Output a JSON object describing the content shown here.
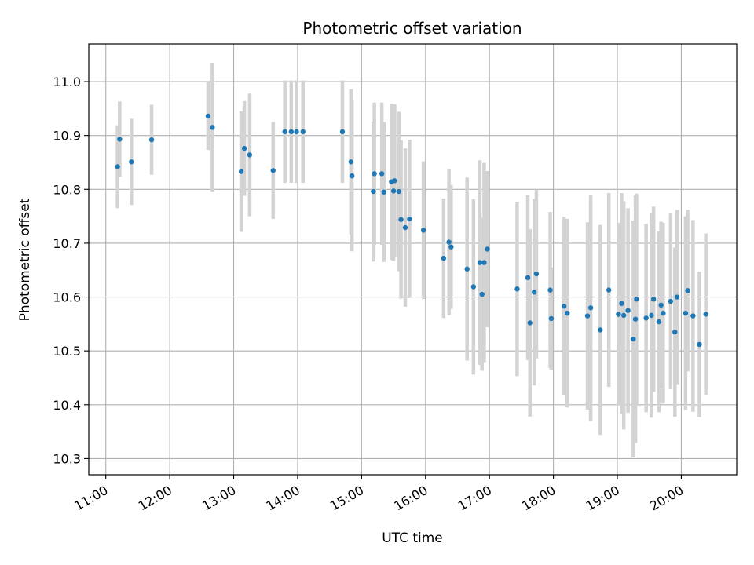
{
  "chart_data": {
    "type": "scatter",
    "title": "Photometric offset variation",
    "xlabel": "UTC time",
    "ylabel": "Photometric offset",
    "x_ticks": [
      "11:00",
      "12:00",
      "13:00",
      "14:00",
      "15:00",
      "16:00",
      "17:00",
      "18:00",
      "19:00",
      "20:00"
    ],
    "y_ticks": [
      "10.3",
      "10.4",
      "10.5",
      "10.6",
      "10.7",
      "10.8",
      "10.9",
      "11.0"
    ],
    "xlim": [
      "10:44",
      "20:52"
    ],
    "ylim": [
      10.27,
      11.07
    ],
    "grid": true,
    "colors": {
      "point": "#1f77b4",
      "errorbar": "#d3d3d3",
      "grid": "#b0b0b0"
    },
    "points": [
      {
        "x": "11:11",
        "y": 10.842,
        "err": 0.077
      },
      {
        "x": "11:13",
        "y": 10.893,
        "err": 0.07
      },
      {
        "x": "11:24",
        "y": 10.851,
        "err": 0.08
      },
      {
        "x": "11:43",
        "y": 10.892,
        "err": 0.065
      },
      {
        "x": "12:36",
        "y": 10.936,
        "err": 0.063
      },
      {
        "x": "12:40",
        "y": 10.915,
        "err": 0.12
      },
      {
        "x": "13:07",
        "y": 10.833,
        "err": 0.112
      },
      {
        "x": "13:10",
        "y": 10.876,
        "err": 0.088
      },
      {
        "x": "13:15",
        "y": 10.864,
        "err": 0.114
      },
      {
        "x": "13:37",
        "y": 10.835,
        "err": 0.09
      },
      {
        "x": "13:48",
        "y": 10.907,
        "err": 0.095
      },
      {
        "x": "13:54",
        "y": 10.907,
        "err": 0.095
      },
      {
        "x": "13:59",
        "y": 10.907,
        "err": 0.095
      },
      {
        "x": "14:05",
        "y": 10.907,
        "err": 0.095
      },
      {
        "x": "14:42",
        "y": 10.907,
        "err": 0.095
      },
      {
        "x": "14:50",
        "y": 10.851,
        "err": 0.135
      },
      {
        "x": "14:51",
        "y": 10.825,
        "err": 0.14
      },
      {
        "x": "15:11",
        "y": 10.796,
        "err": 0.13
      },
      {
        "x": "15:12",
        "y": 10.829,
        "err": 0.132
      },
      {
        "x": "15:19",
        "y": 10.829,
        "err": 0.132
      },
      {
        "x": "15:21",
        "y": 10.795,
        "err": 0.13
      },
      {
        "x": "15:28",
        "y": 10.814,
        "err": 0.145
      },
      {
        "x": "15:30",
        "y": 10.797,
        "err": 0.13
      },
      {
        "x": "15:31",
        "y": 10.816,
        "err": 0.142
      },
      {
        "x": "15:35",
        "y": 10.796,
        "err": 0.148
      },
      {
        "x": "15:37",
        "y": 10.744,
        "err": 0.147
      },
      {
        "x": "15:41",
        "y": 10.729,
        "err": 0.147
      },
      {
        "x": "15:45",
        "y": 10.745,
        "err": 0.147
      },
      {
        "x": "15:58",
        "y": 10.724,
        "err": 0.128
      },
      {
        "x": "16:17",
        "y": 10.672,
        "err": 0.111
      },
      {
        "x": "16:22",
        "y": 10.702,
        "err": 0.136
      },
      {
        "x": "16:24",
        "y": 10.693,
        "err": 0.115
      },
      {
        "x": "16:39",
        "y": 10.652,
        "err": 0.17
      },
      {
        "x": "16:45",
        "y": 10.619,
        "err": 0.163
      },
      {
        "x": "16:51",
        "y": 10.664,
        "err": 0.19
      },
      {
        "x": "16:53",
        "y": 10.605,
        "err": 0.142
      },
      {
        "x": "16:55",
        "y": 10.664,
        "err": 0.185
      },
      {
        "x": "16:58",
        "y": 10.689,
        "err": 0.145
      },
      {
        "x": "17:26",
        "y": 10.615,
        "err": 0.162
      },
      {
        "x": "17:36",
        "y": 10.636,
        "err": 0.153
      },
      {
        "x": "17:38",
        "y": 10.552,
        "err": 0.174
      },
      {
        "x": "17:42",
        "y": 10.609,
        "err": 0.173
      },
      {
        "x": "17:44",
        "y": 10.643,
        "err": 0.157
      },
      {
        "x": "17:57",
        "y": 10.613,
        "err": 0.145
      },
      {
        "x": "17:58",
        "y": 10.56,
        "err": 0.095
      },
      {
        "x": "18:10",
        "y": 10.583,
        "err": 0.166
      },
      {
        "x": "18:13",
        "y": 10.57,
        "err": 0.175
      },
      {
        "x": "18:32",
        "y": 10.565,
        "err": 0.174
      },
      {
        "x": "18:35",
        "y": 10.58,
        "err": 0.21
      },
      {
        "x": "18:44",
        "y": 10.539,
        "err": 0.195
      },
      {
        "x": "18:52",
        "y": 10.613,
        "err": 0.18
      },
      {
        "x": "19:01",
        "y": 10.568,
        "err": 0.17
      },
      {
        "x": "19:04",
        "y": 10.588,
        "err": 0.205
      },
      {
        "x": "19:06",
        "y": 10.566,
        "err": 0.212
      },
      {
        "x": "19:10",
        "y": 10.575,
        "err": 0.19
      },
      {
        "x": "19:15",
        "y": 10.522,
        "err": 0.22
      },
      {
        "x": "19:17",
        "y": 10.559,
        "err": 0.23
      },
      {
        "x": "19:18",
        "y": 10.596,
        "err": 0.196
      },
      {
        "x": "19:27",
        "y": 10.561,
        "err": 0.175
      },
      {
        "x": "19:32",
        "y": 10.566,
        "err": 0.19
      },
      {
        "x": "19:34",
        "y": 10.596,
        "err": 0.172
      },
      {
        "x": "19:39",
        "y": 10.554,
        "err": 0.168
      },
      {
        "x": "19:41",
        "y": 10.585,
        "err": 0.155
      },
      {
        "x": "19:43",
        "y": 10.57,
        "err": 0.168
      },
      {
        "x": "19:50",
        "y": 10.592,
        "err": 0.163
      },
      {
        "x": "19:54",
        "y": 10.535,
        "err": 0.157
      },
      {
        "x": "19:56",
        "y": 10.6,
        "err": 0.162
      },
      {
        "x": "20:04",
        "y": 10.57,
        "err": 0.18
      },
      {
        "x": "20:06",
        "y": 10.612,
        "err": 0.15
      },
      {
        "x": "20:11",
        "y": 10.565,
        "err": 0.178
      },
      {
        "x": "20:17",
        "y": 10.512,
        "err": 0.135
      },
      {
        "x": "20:23",
        "y": 10.568,
        "err": 0.15
      }
    ]
  }
}
